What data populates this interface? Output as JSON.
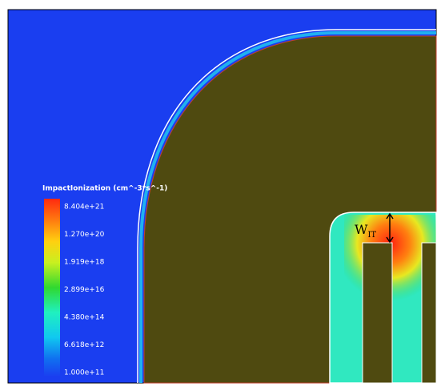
{
  "legend": {
    "title": "ImpactIonization (cm^-3*s^-1)",
    "labels": [
      "8.404e+21",
      "1.270e+20",
      "1.919e+18",
      "2.899e+16",
      "4.380e+14",
      "6.618e+12",
      "1.000e+11"
    ]
  },
  "annotation": {
    "label": "W",
    "subscript": "IT"
  }
}
